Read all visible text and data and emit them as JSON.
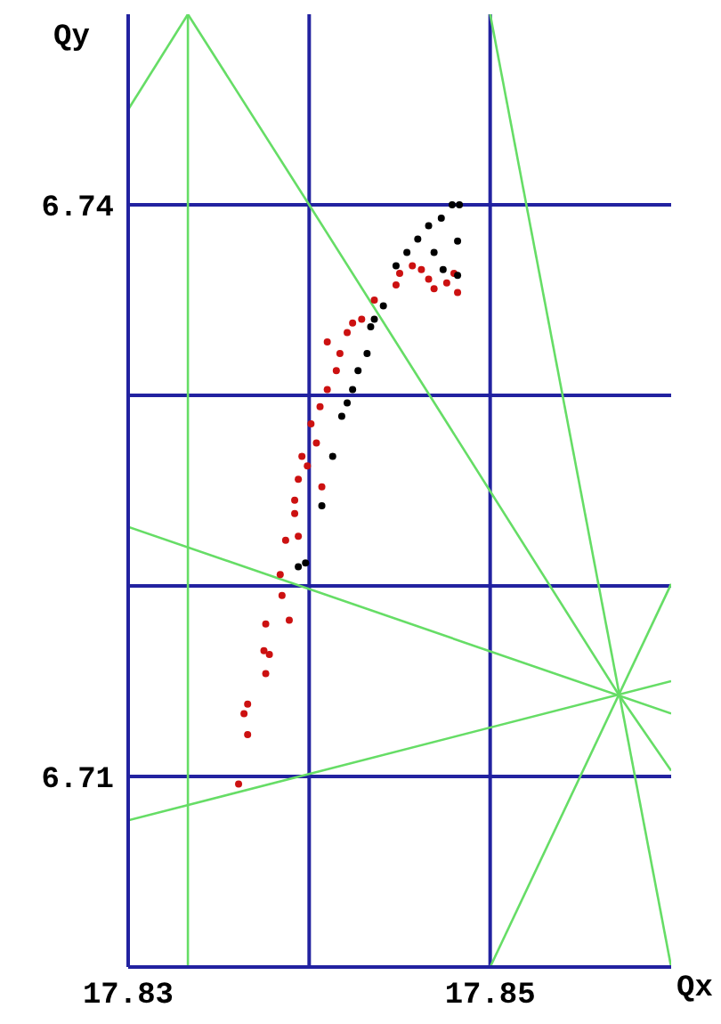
{
  "chart_data": {
    "type": "scatter",
    "xlabel": "Qx",
    "ylabel": "Qy",
    "xlim": [
      17.83,
      17.86
    ],
    "ylim": [
      6.7,
      6.75
    ],
    "xticks": [
      17.83,
      {
        "value": 17.84,
        "label": null
      },
      17.85
    ],
    "yticks": [
      6.71,
      {
        "value": 6.72,
        "label": null
      },
      {
        "value": 6.73,
        "label": null
      },
      6.74
    ],
    "grid": true,
    "series": [
      {
        "type": "line",
        "color": "#66dd66",
        "x": [
          17.8333,
          17.8333
        ],
        "values": [
          6.7,
          6.75
        ]
      },
      {
        "type": "line",
        "color": "#66dd66",
        "x": [
          17.83,
          17.8333
        ],
        "values": [
          6.745,
          6.75
        ]
      },
      {
        "type": "line",
        "color": "#66dd66",
        "x": [
          17.8333,
          17.84,
          17.8571,
          17.86
        ],
        "values": [
          6.75,
          6.74,
          6.7143,
          6.7103
        ]
      },
      {
        "type": "line",
        "color": "#66dd66",
        "x": [
          17.85,
          17.86
        ],
        "values": [
          6.75,
          6.7
        ]
      },
      {
        "type": "line",
        "color": "#66dd66",
        "x": [
          17.83,
          17.86
        ],
        "values": [
          6.7231,
          6.7133
        ]
      },
      {
        "type": "line",
        "color": "#66dd66",
        "x": [
          17.83,
          17.86
        ],
        "values": [
          6.7077,
          6.715
        ]
      },
      {
        "type": "line",
        "color": "#66dd66",
        "x": [
          17.85,
          17.86
        ],
        "values": [
          6.7,
          6.7201
        ]
      },
      {
        "marker": "circle",
        "color": "#cc1111",
        "x": [
          17.8361,
          17.8366,
          17.8364,
          17.8366,
          17.8376,
          17.8375,
          17.8378,
          17.8376,
          17.8389,
          17.8385,
          17.8384,
          17.8387,
          17.8394,
          17.8392,
          17.8392,
          17.8394,
          17.8399,
          17.8407,
          17.8396,
          17.8404,
          17.8401,
          17.8406,
          17.841,
          17.8415,
          17.8417,
          17.841,
          17.8421,
          17.8424,
          17.8429,
          17.8436,
          17.8448,
          17.845,
          17.8457,
          17.8462,
          17.8466,
          17.8469,
          17.8476,
          17.848,
          17.8482
        ],
        "values": [
          6.7096,
          6.7122,
          6.7133,
          6.7138,
          6.7154,
          6.7166,
          6.7164,
          6.718,
          6.7182,
          6.7195,
          6.7206,
          6.7224,
          6.7226,
          6.7238,
          6.7245,
          6.7256,
          6.7263,
          6.7252,
          6.7268,
          6.7275,
          6.7285,
          6.7294,
          6.7303,
          6.7313,
          6.7322,
          6.7328,
          6.7333,
          6.7338,
          6.734,
          6.735,
          6.7358,
          6.7364,
          6.7368,
          6.7366,
          6.7361,
          6.7356,
          6.7359,
          6.7364,
          6.7354
        ]
      },
      {
        "marker": "circle",
        "color": "#000000",
        "x": [
          17.8483,
          17.8479,
          17.8473,
          17.8466,
          17.846,
          17.8454,
          17.8448,
          17.8441,
          17.8436,
          17.8434,
          17.8432,
          17.8427,
          17.8424,
          17.8421,
          17.8418,
          17.8413,
          17.8407,
          17.8398,
          17.8394,
          17.8482,
          17.8482,
          17.8474,
          17.8469
        ],
        "values": [
          6.74,
          6.74,
          6.7393,
          6.7389,
          6.7382,
          6.7375,
          6.7368,
          6.7347,
          6.734,
          6.7336,
          6.7322,
          6.7313,
          6.7303,
          6.7296,
          6.7289,
          6.7268,
          6.7242,
          6.7212,
          6.721,
          6.7363,
          6.7381,
          6.7366,
          6.7375
        ]
      }
    ]
  }
}
